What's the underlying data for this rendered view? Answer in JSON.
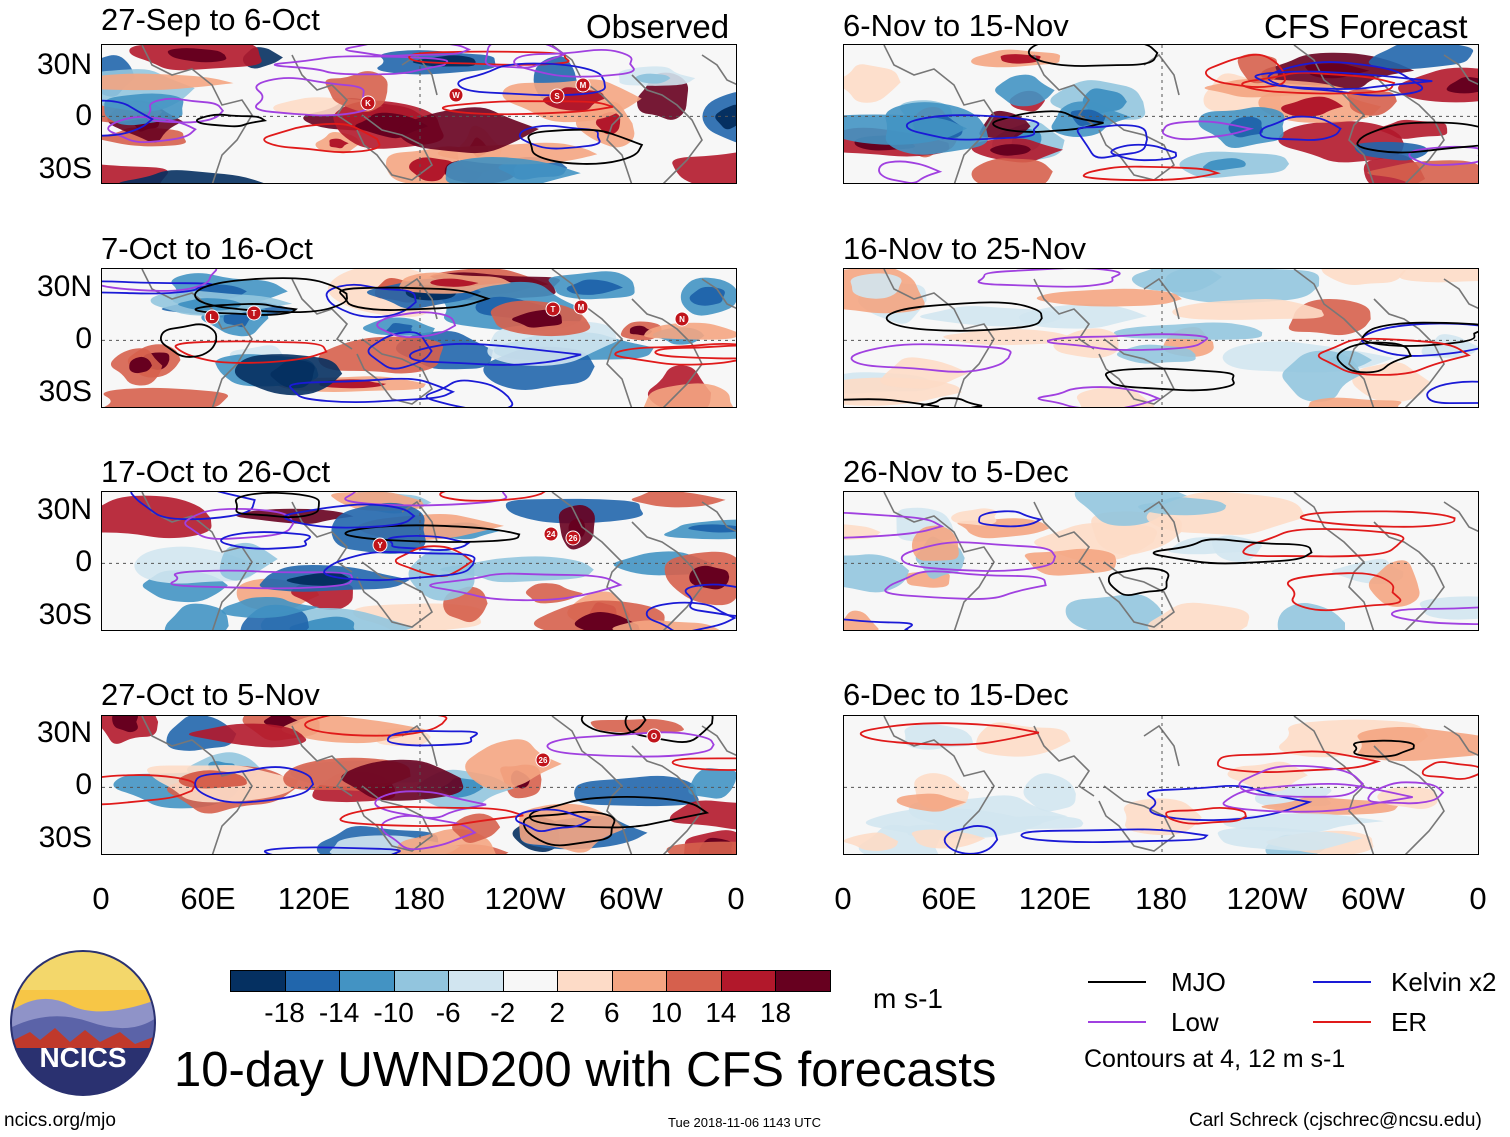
{
  "header": {
    "observed_label": "Observed",
    "forecast_label": "CFS Forecast"
  },
  "panels_observed": [
    {
      "title": "27-Sep to 6-Oct"
    },
    {
      "title": "7-Oct to 16-Oct"
    },
    {
      "title": "17-Oct to 26-Oct"
    },
    {
      "title": "27-Oct to 5-Nov"
    }
  ],
  "panels_forecast": [
    {
      "title": "6-Nov to 15-Nov"
    },
    {
      "title": "16-Nov to 25-Nov"
    },
    {
      "title": "26-Nov to 5-Dec"
    },
    {
      "title": "6-Dec to 15-Dec"
    }
  ],
  "y_axis_labels": [
    "30N",
    "0",
    "30S"
  ],
  "x_axis_labels": [
    "0",
    "60E",
    "120E",
    "180",
    "120W",
    "60W",
    "0"
  ],
  "colorbar": {
    "ticks": [
      "-18",
      "-14",
      "-10",
      "-6",
      "-2",
      "2",
      "6",
      "10",
      "14",
      "18"
    ],
    "colors": [
      "#053061",
      "#2166ac",
      "#4393c3",
      "#92c5de",
      "#d1e5f0",
      "#f7f7f7",
      "#fddbc7",
      "#f4a582",
      "#d6604d",
      "#b2182b",
      "#67001f"
    ],
    "units": "m s-1"
  },
  "legend": {
    "items": [
      {
        "label": "MJO",
        "color": "#000000"
      },
      {
        "label": "Kelvin x2",
        "color": "#1a1ad6"
      },
      {
        "label": "Low",
        "color": "#a040e0"
      },
      {
        "label": "ER",
        "color": "#e01a1a"
      }
    ],
    "contours_note": "Contours at 4, 12 m s-1"
  },
  "logo": {
    "text": "NCICS"
  },
  "main_title": "10-day UWND200 with CFS forecasts",
  "footer": {
    "url": "ncics.org/mjo",
    "timestamp": "Tue 2018-11-06 1143 UTC",
    "author": "Carl Schreck (cjschrec@ncsu.edu)"
  },
  "storm_markers": [
    {
      "panel": "obs0",
      "label": "K"
    },
    {
      "panel": "obs0",
      "label": "W"
    },
    {
      "panel": "obs0",
      "label": "S"
    },
    {
      "panel": "obs0",
      "label": "M"
    },
    {
      "panel": "obs1",
      "label": "L"
    },
    {
      "panel": "obs1",
      "label": "T"
    },
    {
      "panel": "obs1",
      "label": "T"
    },
    {
      "panel": "obs1",
      "label": "M"
    },
    {
      "panel": "obs1",
      "label": "N"
    },
    {
      "panel": "obs2",
      "label": "Y"
    },
    {
      "panel": "obs2",
      "label": "24"
    },
    {
      "panel": "obs2",
      "label": "26"
    },
    {
      "panel": "obs3",
      "label": "26"
    },
    {
      "panel": "obs3",
      "label": "O"
    }
  ]
}
